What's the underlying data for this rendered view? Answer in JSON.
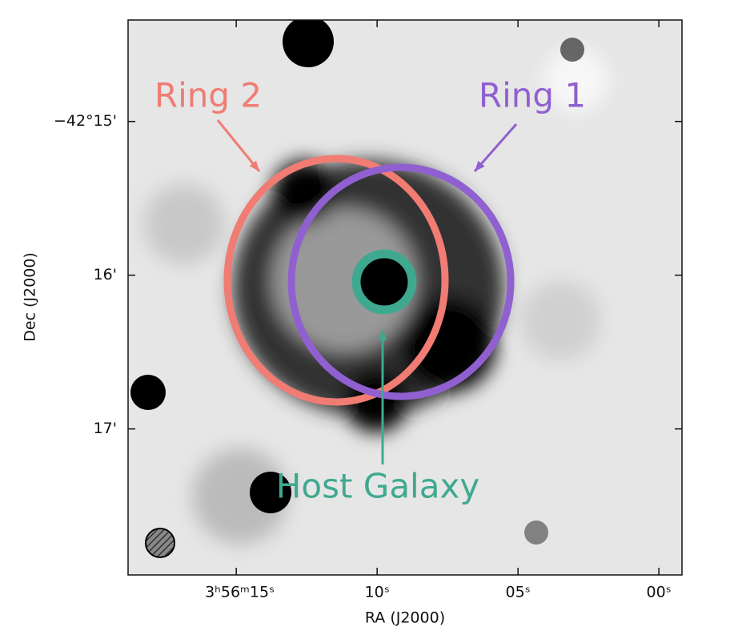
{
  "chart_data": {
    "type": "image",
    "xlabel": "RA (J2000)",
    "ylabel": "Dec (J2000)",
    "xlim": [
      18.84,
      -0.82
    ],
    "xticks": [
      {
        "value": 15,
        "label": "3ʰ56ᵐ15ˢ"
      },
      {
        "value": 10,
        "label": "10ˢ"
      },
      {
        "value": 5,
        "label": "05ˢ"
      },
      {
        "value": 0,
        "label": "00ˢ"
      }
    ],
    "ylim": [
      14.34,
      17.95
    ],
    "yticks": [
      {
        "value": 15,
        "label": "−42°15'"
      },
      {
        "value": 16,
        "label": "16'"
      },
      {
        "value": 17,
        "label": "17'"
      }
    ],
    "annotations": [
      {
        "text": "Ring 2",
        "color": "#f07c74"
      },
      {
        "text": "Ring 1",
        "color": "#9060d0"
      },
      {
        "text": "Host Galaxy",
        "color": "#3fa990"
      }
    ]
  }
}
